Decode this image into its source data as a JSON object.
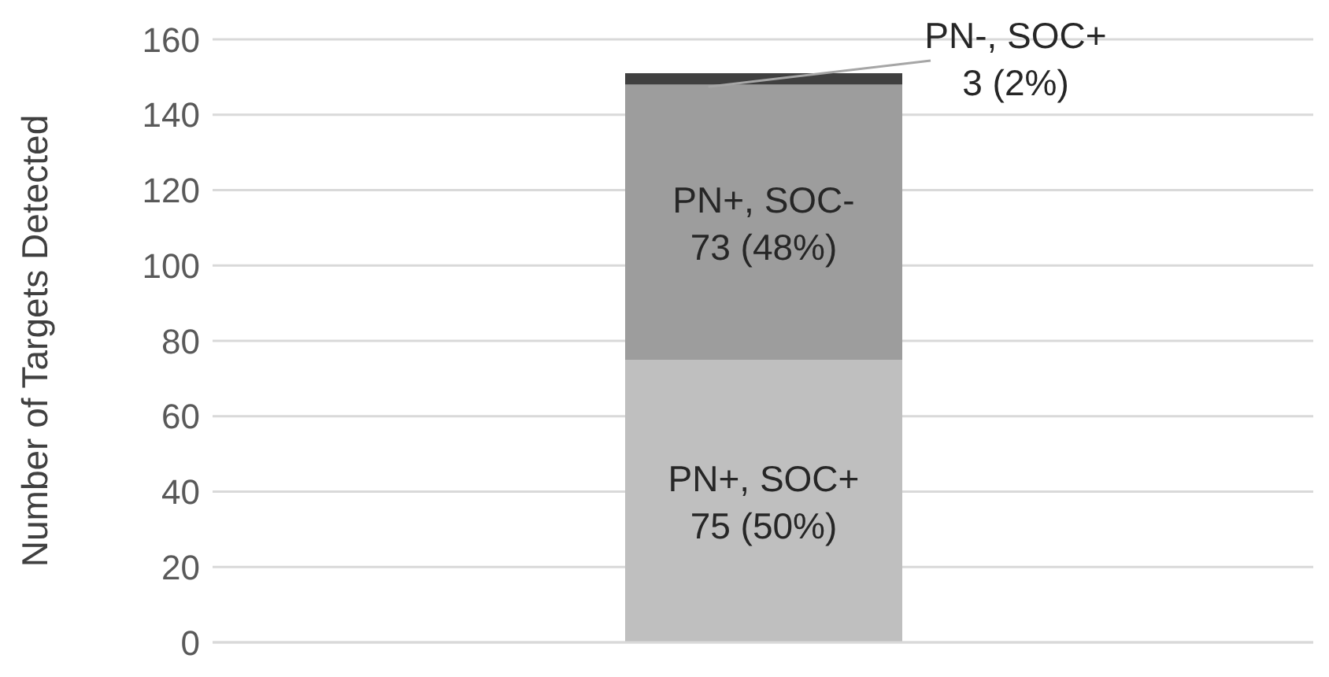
{
  "chart_data": {
    "type": "bar",
    "ylabel": "Number of Targets Detected",
    "categories": [
      null
    ],
    "stacked": true,
    "grid": "y",
    "ylim": [
      0,
      160
    ],
    "yticks": [
      0,
      20,
      40,
      60,
      80,
      100,
      120,
      140,
      160
    ],
    "series": [
      {
        "name": "PN+, SOC+",
        "color": "#bfbfbf",
        "values": [
          75
        ],
        "value_labels": [
          "75 (50%)"
        ]
      },
      {
        "name": "PN+, SOC-",
        "color": "#9d9d9d",
        "values": [
          73
        ],
        "value_labels": [
          "73 (48%)"
        ]
      },
      {
        "name": "PN-, SOC+",
        "color": "#404040",
        "values": [
          3
        ],
        "value_labels": [
          "3 (2%)"
        ]
      }
    ]
  }
}
